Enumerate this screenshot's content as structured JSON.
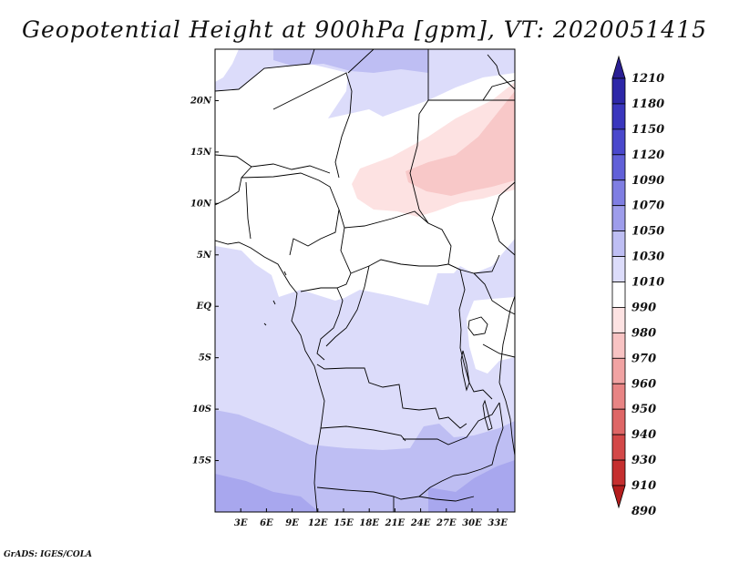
{
  "title": "Geopotential Height at 900hPa [gpm], VT: 2020051415",
  "credit": "GrADS: IGES/COLA",
  "map": {
    "lat_range": [
      -20,
      25
    ],
    "lon_range": [
      0,
      35
    ],
    "lat_ticks": [
      {
        "value": 20,
        "label": "20N"
      },
      {
        "value": 15,
        "label": "15N"
      },
      {
        "value": 10,
        "label": "10N"
      },
      {
        "value": 5,
        "label": "5N"
      },
      {
        "value": 0,
        "label": "EQ"
      },
      {
        "value": -5,
        "label": "5S"
      },
      {
        "value": -10,
        "label": "10S"
      },
      {
        "value": -15,
        "label": "15S"
      }
    ],
    "lon_ticks": [
      {
        "value": 3,
        "label": "3E"
      },
      {
        "value": 6,
        "label": "6E"
      },
      {
        "value": 9,
        "label": "9E"
      },
      {
        "value": 12,
        "label": "12E"
      },
      {
        "value": 15,
        "label": "15E"
      },
      {
        "value": 18,
        "label": "18E"
      },
      {
        "value": 21,
        "label": "21E"
      },
      {
        "value": 24,
        "label": "24E"
      },
      {
        "value": 27,
        "label": "27E"
      },
      {
        "value": 30,
        "label": "30E"
      },
      {
        "value": 33,
        "label": "33E"
      }
    ]
  },
  "colorbar": {
    "levels": [
      {
        "label": "1210",
        "color": "#2a1f94"
      },
      {
        "label": "1180",
        "color": "#2d27a8"
      },
      {
        "label": "1150",
        "color": "#3a36bd"
      },
      {
        "label": "1120",
        "color": "#4a48cc"
      },
      {
        "label": "1090",
        "color": "#6160d8"
      },
      {
        "label": "1070",
        "color": "#7f7ee2"
      },
      {
        "label": "1050",
        "color": "#9e9deb"
      },
      {
        "label": "1030",
        "color": "#bebef3"
      },
      {
        "label": "1010",
        "color": "#dcdcfa"
      },
      {
        "label": "990",
        "color": "#ffffff"
      },
      {
        "label": "980",
        "color": "#fde2e2"
      },
      {
        "label": "970",
        "color": "#f8c3c3"
      },
      {
        "label": "960",
        "color": "#f1a3a3"
      },
      {
        "label": "950",
        "color": "#e88484"
      },
      {
        "label": "940",
        "color": "#de6666"
      },
      {
        "label": "930",
        "color": "#d34848"
      },
      {
        "label": "910",
        "color": "#c52f2f"
      },
      {
        "label": "890",
        "color": "#b41d1d"
      }
    ]
  },
  "field_colors": {
    "c990": "#ffffff",
    "c1010": "#dcdcfa",
    "c1030": "#bebef3",
    "c1050": "#a8a7ee",
    "c980": "#fde2e2",
    "c970": "#f8c8c8"
  }
}
